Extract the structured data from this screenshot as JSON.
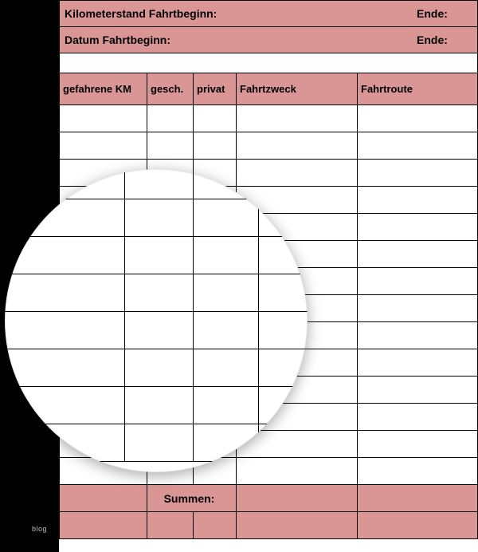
{
  "colors": {
    "header_fill": "#d99694",
    "border": "#000000",
    "page_bg": "#ffffff",
    "strip_bg": "#000000"
  },
  "header": {
    "row1_label": "Kilometerstand Fahrtbeginn:",
    "row1_end": "Ende:",
    "row2_label": "Datum Fahrtbeginn:",
    "row2_end": "Ende:"
  },
  "columns": {
    "km": "gefahrene KM",
    "gesch": "gesch.",
    "privat": "privat",
    "zweck": "Fahrtzweck",
    "route": "Fahrtroute"
  },
  "body_row_count": 14,
  "summary": {
    "label": "Summen:"
  },
  "watermark": "blog",
  "lens": {
    "rows": 8,
    "cols": 4
  }
}
